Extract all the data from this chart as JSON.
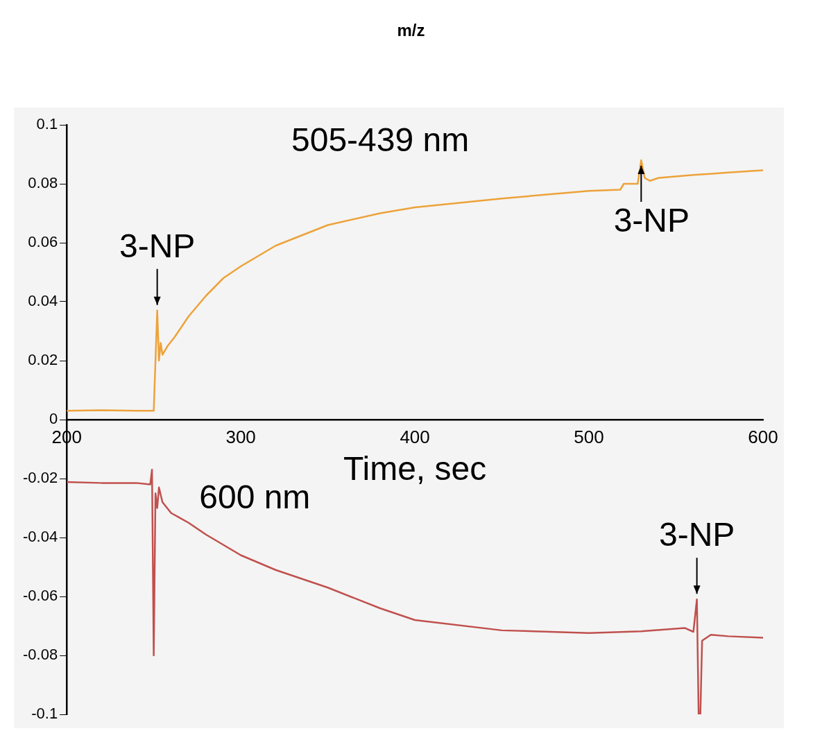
{
  "chart_data": {
    "type": "line",
    "xlabel": "Time, sec",
    "annotations": [
      "m/z",
      {
        "text": "3-NP",
        "x": 252,
        "y": 0.037
      },
      {
        "text": "3-NP",
        "x": 530,
        "y": 0.088
      },
      {
        "text": "3-NP",
        "x": 562,
        "y": -0.061
      }
    ],
    "series": [
      {
        "name": "505-439 nm",
        "color": "#eda23a",
        "x": [
          200,
          220,
          240,
          250,
          251,
          252,
          253,
          254,
          255,
          258,
          262,
          270,
          280,
          290,
          300,
          320,
          350,
          380,
          400,
          450,
          500,
          518,
          520,
          528,
          530,
          532,
          535,
          540,
          560,
          580,
          600
        ],
        "values": [
          0.003,
          0.0032,
          0.003,
          0.003,
          0.02,
          0.037,
          0.02,
          0.026,
          0.022,
          0.025,
          0.028,
          0.035,
          0.042,
          0.048,
          0.052,
          0.059,
          0.066,
          0.07,
          0.072,
          0.075,
          0.0776,
          0.078,
          0.08,
          0.08,
          0.088,
          0.082,
          0.081,
          0.082,
          0.083,
          0.0838,
          0.0846
        ]
      },
      {
        "name": "600 nm",
        "color": "#c0504d",
        "x": [
          200,
          220,
          240,
          248,
          249,
          250,
          251,
          252,
          253,
          255,
          260,
          270,
          280,
          300,
          320,
          350,
          380,
          400,
          450,
          500,
          530,
          555,
          560,
          562,
          563,
          564,
          565,
          570,
          580,
          600
        ],
        "values": [
          -0.0212,
          -0.0215,
          -0.0215,
          -0.022,
          -0.017,
          -0.08,
          -0.025,
          -0.03,
          -0.023,
          -0.028,
          -0.0317,
          -0.035,
          -0.039,
          -0.046,
          -0.051,
          -0.057,
          -0.064,
          -0.068,
          -0.0715,
          -0.0724,
          -0.0718,
          -0.0707,
          -0.072,
          -0.061,
          -0.1,
          -0.1,
          -0.075,
          -0.073,
          -0.0735,
          -0.074
        ]
      }
    ],
    "xlim": [
      200,
      600
    ],
    "xticks": [
      200,
      300,
      400,
      500,
      600
    ],
    "ylim": [
      -0.1,
      0.1
    ],
    "yticks": [
      -0.1,
      -0.08,
      -0.06,
      -0.04,
      -0.02,
      0,
      0.02,
      0.04,
      0.06,
      0.08,
      0.1
    ],
    "grid": false,
    "legend": false,
    "marker": "none",
    "line_style": "solid"
  }
}
